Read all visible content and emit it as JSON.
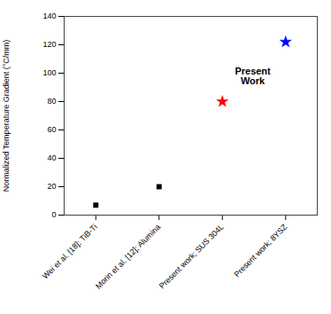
{
  "chart_data": {
    "type": "scatter",
    "categories": [
      "Wei et al. [18]; TiB-Ti",
      "Morin et al. [12]; Alumina",
      "Present work; SUS 304L",
      "Present work; 8YSZ"
    ],
    "values": [
      7,
      20,
      80,
      122
    ],
    "colors": [
      "black",
      "black",
      "red",
      "blue"
    ],
    "markers": [
      "square",
      "square",
      "star",
      "star"
    ],
    "ylabel": "Normalized Temperature Gradient (°C/mm)",
    "ylim": [
      0,
      140
    ],
    "yticks": [
      0,
      20,
      40,
      60,
      80,
      100,
      120,
      140
    ],
    "annotations": [
      {
        "text": "Present\nWork",
        "x": 2.48,
        "y": 98
      }
    ],
    "grid": false
  }
}
